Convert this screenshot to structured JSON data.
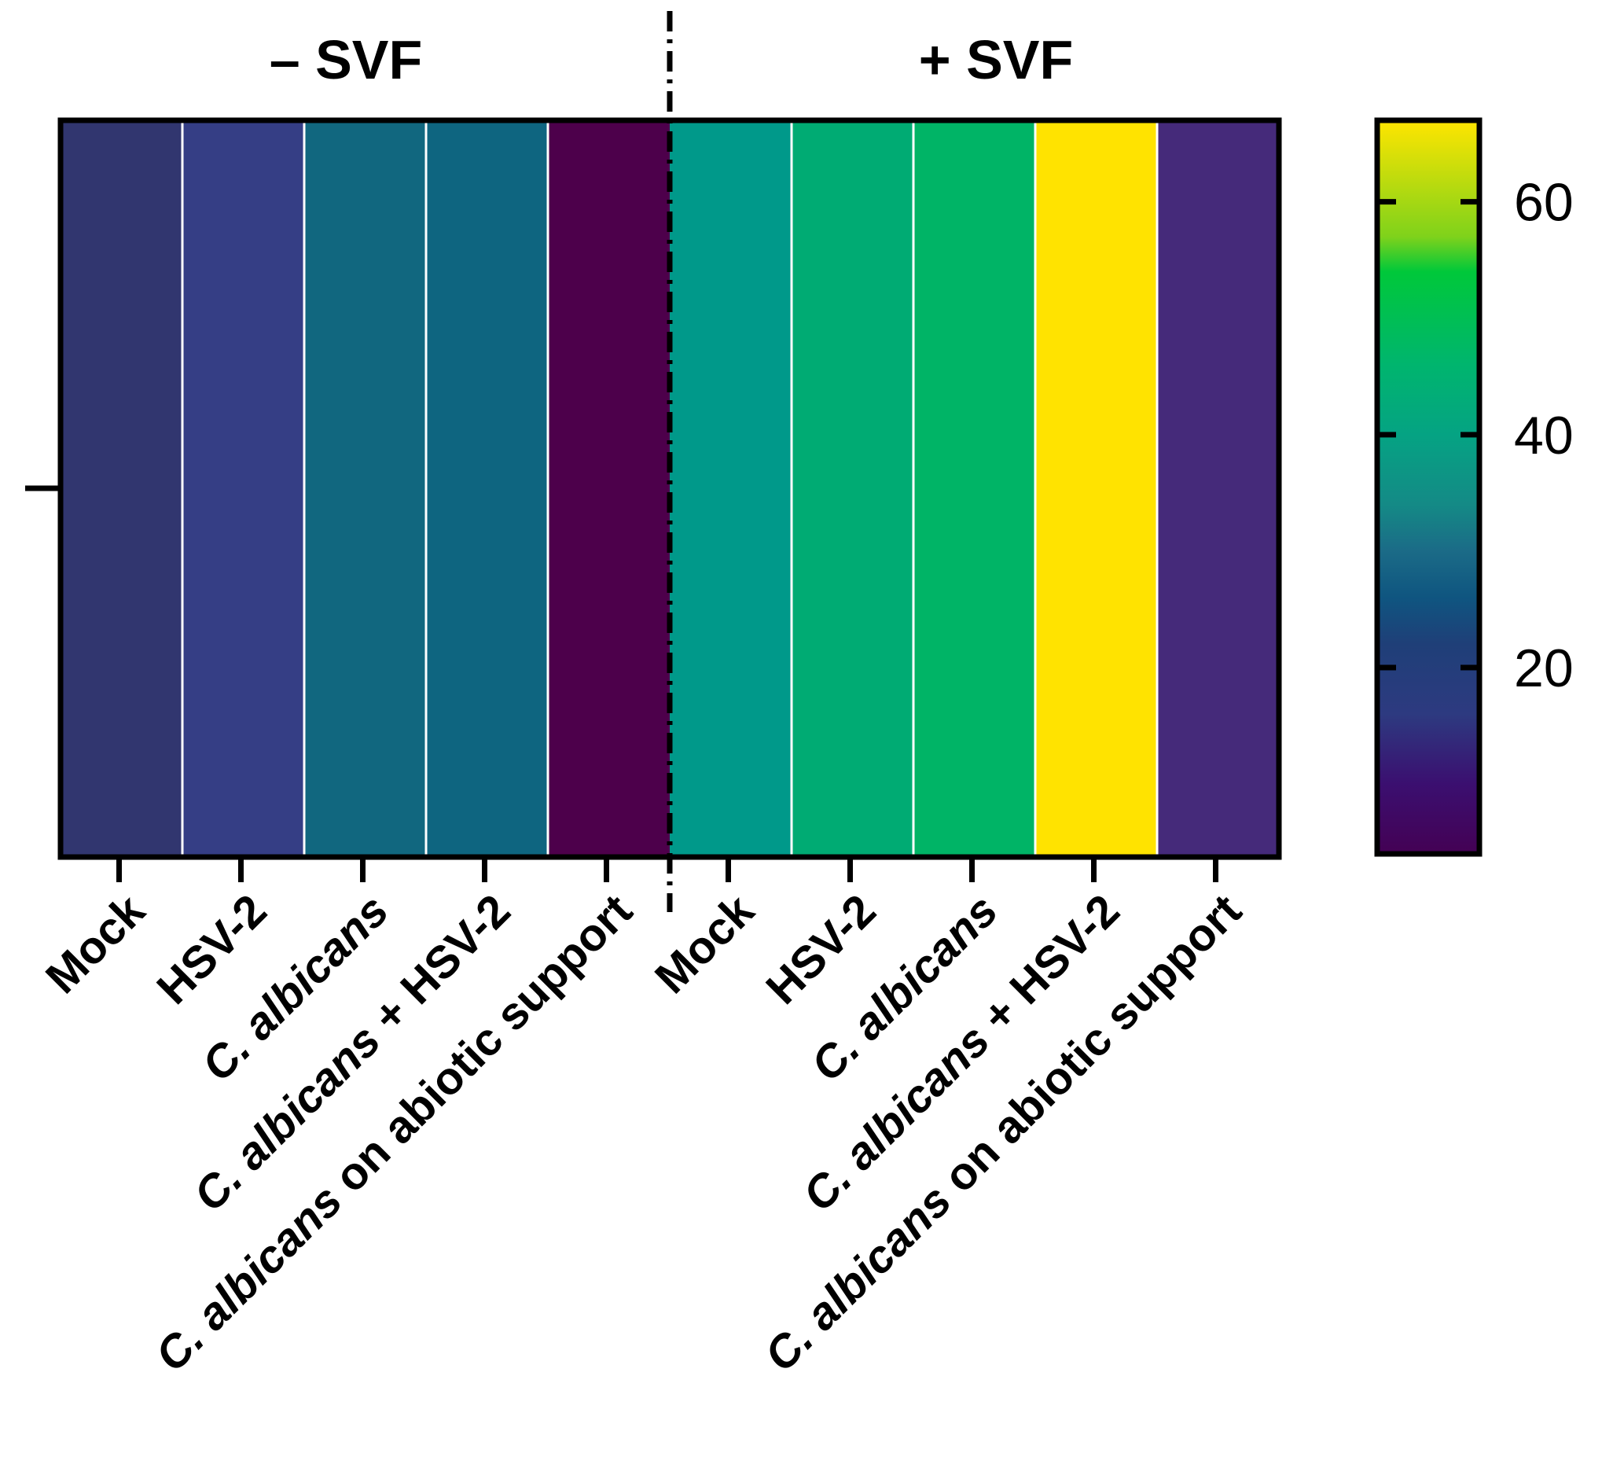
{
  "chart_data": {
    "type": "heatmap",
    "groups": [
      {
        "label": "– SVF",
        "categories": [
          "Mock",
          "HSV-2",
          "C. albicans",
          "C. albicans + HSV-2",
          "C. albicans on abiotic support"
        ]
      },
      {
        "label": "+ SVF",
        "categories": [
          "Mock",
          "HSV-2",
          "C. albicans",
          "C. albicans + HSV-2",
          "C. albicans on abiotic support"
        ]
      }
    ],
    "values": [
      15,
      17,
      30,
      29,
      5,
      36,
      43,
      46,
      66,
      12
    ],
    "colorbar": {
      "min": 4,
      "max": 67,
      "ticks": [
        20,
        40,
        60
      ],
      "tick_labels": [
        "20",
        "40",
        "60"
      ],
      "stops": [
        {
          "value": 4,
          "color": "#440154"
        },
        {
          "value": 10,
          "color": "#3b0f70"
        },
        {
          "value": 16,
          "color": "#2d3a80"
        },
        {
          "value": 22,
          "color": "#1f3f78"
        },
        {
          "value": 26,
          "color": "#0f5580"
        },
        {
          "value": 30,
          "color": "#1b6b87"
        },
        {
          "value": 34,
          "color": "#148a86"
        },
        {
          "value": 40,
          "color": "#05a383"
        },
        {
          "value": 46,
          "color": "#00b56e"
        },
        {
          "value": 54,
          "color": "#00c83a"
        },
        {
          "value": 57,
          "color": "#7fd21b"
        },
        {
          "value": 67,
          "color": "#ffe500"
        }
      ]
    },
    "colors": {
      "axis": "#000000",
      "cell_separator": "#ffffff",
      "cell_colors": [
        "#31366f",
        "#353e85",
        "#11677f",
        "#0e6580",
        "#4d004b",
        "#00998a",
        "#00ab73",
        "#00b466",
        "#ffe300",
        "#452a7a"
      ]
    }
  }
}
